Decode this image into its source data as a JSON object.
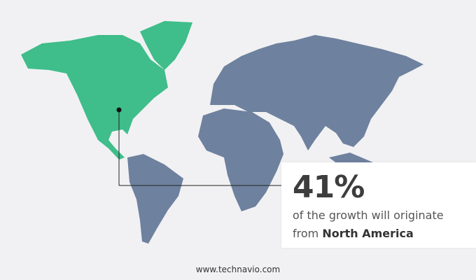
{
  "colors": {
    "highlight_region": "#3fbd8a",
    "other_regions": "#6e819e",
    "background": "#f1f1f3"
  },
  "highlight": {
    "region": "North America",
    "percent": "41%",
    "line1": "of the growth will originate",
    "line2_prefix": "from",
    "line2_region": "North America"
  },
  "footer": {
    "url": "www.technavio.com"
  }
}
